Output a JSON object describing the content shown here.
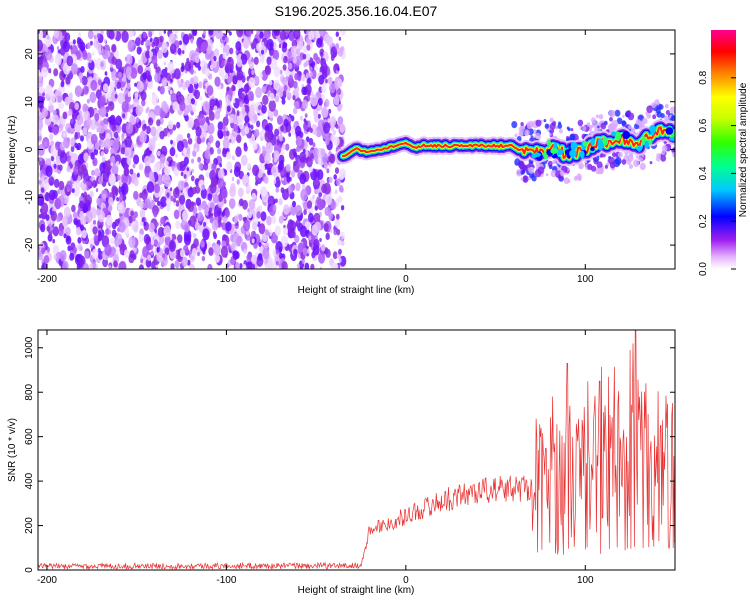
{
  "title": "S196.2025.356.16.04.E07",
  "colors": {
    "series": "#e83232",
    "axis": "#000000"
  },
  "chart_data": [
    {
      "type": "heatmap",
      "name": "spectrogram",
      "xlabel": "Height of straight line (km)",
      "ylabel": "Frequency (Hz)",
      "xlim": [
        -205,
        150
      ],
      "ylim": [
        -25,
        25
      ],
      "xticks": [
        -200,
        -100,
        0,
        100
      ],
      "yticks": [
        -20,
        -10,
        0,
        10,
        20
      ],
      "noise_region_x": [
        -205,
        -35
      ],
      "signal_ridge": {
        "x": [
          -35,
          -28,
          -20,
          -10,
          0,
          5,
          10,
          30,
          60,
          62,
          70,
          80,
          90,
          100,
          110,
          120,
          130,
          140,
          150
        ],
        "y": [
          -1.5,
          0,
          -0.5,
          0.5,
          1.5,
          0.5,
          0.8,
          0.8,
          0.8,
          0,
          -0.5,
          0.5,
          -1,
          0,
          1.5,
          2.5,
          1,
          4,
          3
        ]
      },
      "colorbar": {
        "label": "Normalized spectral amplitude",
        "ticks": [
          "0.0",
          "0.2",
          "0.4",
          "0.6",
          "0.8"
        ],
        "range": [
          0,
          1
        ]
      }
    },
    {
      "type": "line",
      "name": "snr",
      "xlabel": "Height of straight line (km)",
      "ylabel": "SNR (10 * v/v)",
      "xlim": [
        -205,
        150
      ],
      "ylim": [
        0,
        1080
      ],
      "xticks": [
        -200,
        -100,
        0,
        100
      ],
      "yticks": [
        0,
        200,
        400,
        600,
        800,
        1000
      ],
      "envelope": {
        "x": [
          -205,
          -25,
          -20,
          -10,
          0,
          20,
          40,
          60,
          70,
          80,
          90,
          100,
          110,
          120,
          130,
          140,
          150
        ],
        "y": [
          18,
          20,
          200,
          220,
          260,
          330,
          380,
          390,
          400,
          420,
          450,
          460,
          480,
          500,
          520,
          480,
          460
        ]
      },
      "peaks": [
        {
          "x": 90,
          "y": 930
        },
        {
          "x": 108,
          "y": 850
        },
        {
          "x": 113,
          "y": 870
        },
        {
          "x": 128,
          "y": 1080
        },
        {
          "x": 142,
          "y": 650
        }
      ]
    }
  ]
}
